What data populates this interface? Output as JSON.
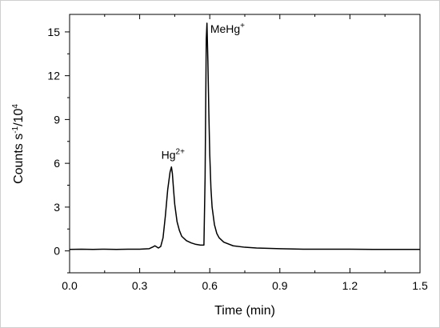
{
  "chart_data": {
    "type": "line",
    "title": "",
    "xlabel": "Time (min)",
    "ylabel": {
      "prefix": "Counts s",
      "exp1": "-1",
      "mid": "/10",
      "exp2": "4"
    },
    "xlim": [
      0.0,
      1.5
    ],
    "ylim": [
      -1.5,
      16.2
    ],
    "x_ticks": [
      0.0,
      0.3,
      0.6,
      0.9,
      1.2,
      1.5
    ],
    "x_tick_labels": [
      "0.0",
      "0.3",
      "0.6",
      "0.9",
      "1.2",
      "1.5"
    ],
    "y_ticks": [
      0,
      3,
      6,
      9,
      12,
      15
    ],
    "y_tick_labels": [
      "0",
      "3",
      "6",
      "9",
      "12",
      "15"
    ],
    "grid": false,
    "annotations": [
      {
        "base": "Hg",
        "sup": "2+",
        "x": 0.436,
        "y": 5.75
      },
      {
        "base": "MeHg",
        "sup": "+",
        "x": 0.585,
        "y": 15.6
      }
    ],
    "series": [
      {
        "x": [
          0.0,
          0.05,
          0.1,
          0.15,
          0.2,
          0.25,
          0.3,
          0.34,
          0.36,
          0.365,
          0.37,
          0.38,
          0.39,
          0.4,
          0.41,
          0.42,
          0.43,
          0.436,
          0.44,
          0.445,
          0.45,
          0.46,
          0.47,
          0.48,
          0.5,
          0.52,
          0.54,
          0.56,
          0.575,
          0.58,
          0.585,
          0.588,
          0.592,
          0.596,
          0.6,
          0.605,
          0.61,
          0.62,
          0.63,
          0.64,
          0.66,
          0.7,
          0.75,
          0.8,
          0.9,
          1.0,
          1.1,
          1.2,
          1.3,
          1.4,
          1.5
        ],
        "y": [
          0.1,
          0.12,
          0.1,
          0.12,
          0.1,
          0.12,
          0.12,
          0.15,
          0.3,
          0.35,
          0.3,
          0.2,
          0.3,
          0.9,
          2.4,
          4.2,
          5.4,
          5.75,
          5.3,
          4.2,
          3.2,
          2.0,
          1.4,
          1.0,
          0.7,
          0.55,
          0.45,
          0.4,
          0.4,
          5.0,
          14.5,
          15.6,
          13.0,
          9.5,
          6.6,
          4.3,
          3.0,
          1.8,
          1.2,
          0.9,
          0.6,
          0.35,
          0.25,
          0.2,
          0.15,
          0.12,
          0.12,
          0.12,
          0.1,
          0.1,
          0.1
        ]
      }
    ]
  }
}
